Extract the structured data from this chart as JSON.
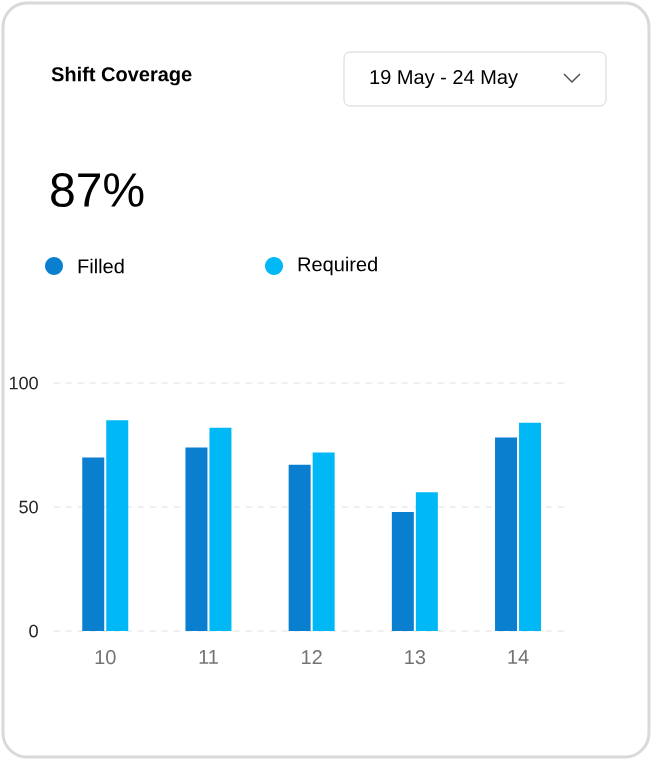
{
  "chart_data": {
    "type": "bar",
    "title": "Shift Coverage",
    "subtitle": "19 May - 24 May",
    "annotations": [
      "87%"
    ],
    "categories": [
      "10",
      "11",
      "12",
      "13",
      "14"
    ],
    "series": [
      {
        "name": "Filled",
        "color": "#0a7fd0",
        "values": [
          70,
          74,
          67,
          48,
          78
        ]
      },
      {
        "name": "Required",
        "color": "#00b8f5",
        "values": [
          85,
          82,
          72,
          56,
          84
        ]
      }
    ],
    "ylim": [
      0,
      100
    ],
    "yticks": [
      0,
      50,
      100
    ],
    "grid": "y",
    "legend": "top left"
  }
}
